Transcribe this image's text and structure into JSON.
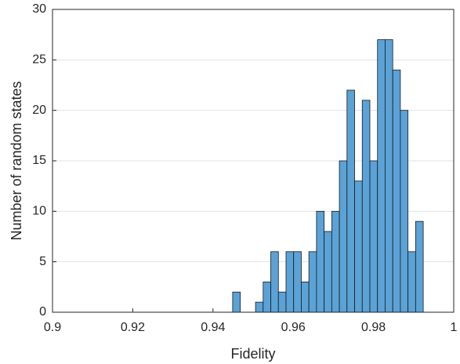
{
  "chart_data": {
    "type": "histogram",
    "x_label": "Fidelity",
    "y_label": "Number of random states",
    "bins": [
      0.9449,
      0.9468,
      0.9487,
      0.9506,
      0.9525,
      0.9544,
      0.9563,
      0.9582,
      0.9601,
      0.962,
      0.9639,
      0.9658,
      0.9677,
      0.9696,
      0.9715,
      0.9734,
      0.9753,
      0.9772,
      0.9791,
      0.981,
      0.9829,
      0.9848,
      0.9867,
      0.9886,
      0.9905,
      0.9924
    ],
    "values": [
      2,
      0,
      0,
      1,
      3,
      6,
      2,
      6,
      6,
      3,
      6,
      10,
      8,
      10,
      15,
      22,
      13,
      21,
      15,
      27,
      27,
      24,
      20,
      6,
      9
    ],
    "color": "#5ba2d6",
    "xlim": [
      0.9,
      1
    ],
    "xticks": [
      0.9,
      0.92,
      0.94,
      0.96,
      0.98,
      1
    ],
    "ylim": [
      0,
      30
    ],
    "yticks": [
      0,
      5,
      10,
      15,
      20,
      25,
      30
    ],
    "grid": true
  }
}
